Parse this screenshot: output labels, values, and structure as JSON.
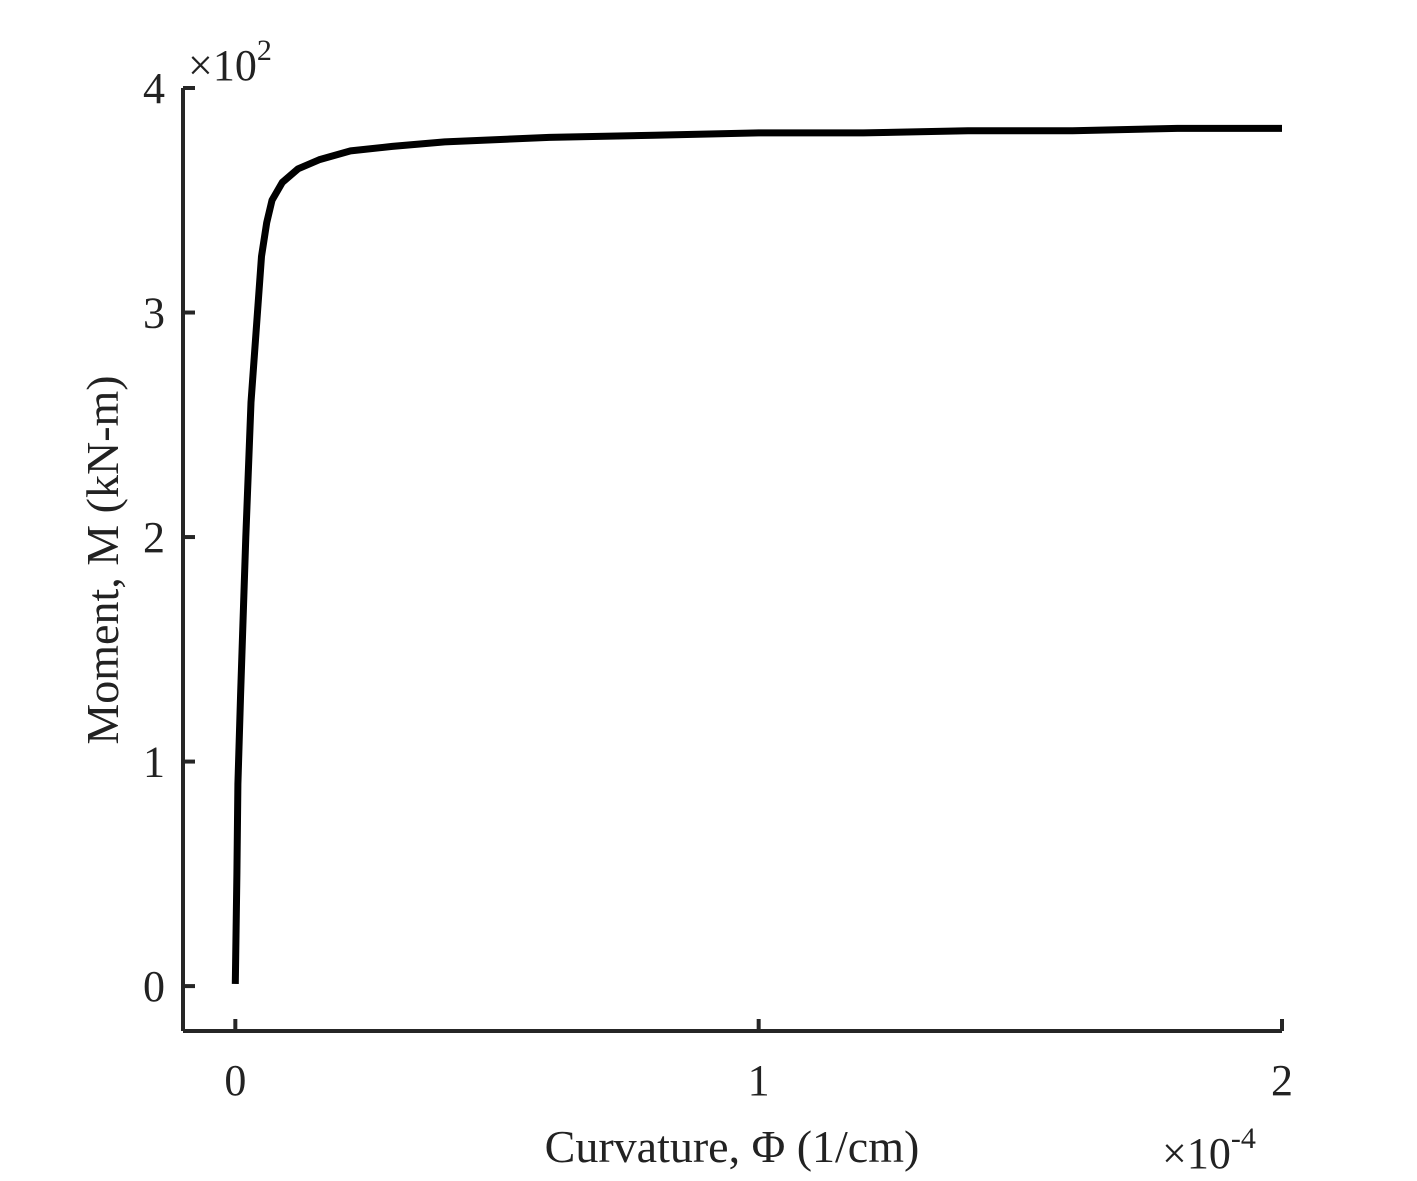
{
  "chart_data": {
    "type": "line",
    "title": "",
    "xlabel": "Curvature, Φ (1/cm)",
    "ylabel": "Moment, M (kN-m)",
    "x_exponent": {
      "prefix": "×10",
      "power": "-4"
    },
    "y_exponent": {
      "prefix": "×10",
      "power": "2"
    },
    "xlim": [
      -0.1,
      2.0
    ],
    "ylim": [
      -0.2,
      4.0
    ],
    "xticks": [
      {
        "value": 0,
        "label": "0"
      },
      {
        "value": 1,
        "label": "1"
      },
      {
        "value": 2,
        "label": "2"
      }
    ],
    "yticks": [
      {
        "value": 0,
        "label": "0"
      },
      {
        "value": 1,
        "label": "1"
      },
      {
        "value": 2,
        "label": "2"
      },
      {
        "value": 3,
        "label": "3"
      },
      {
        "value": 4,
        "label": "4"
      }
    ],
    "grid": false,
    "series": [
      {
        "color": "#000000",
        "x": [
          0,
          0.003,
          0.005,
          0.01,
          0.02,
          0.03,
          0.05,
          0.06,
          0.07,
          0.09,
          0.12,
          0.16,
          0.22,
          0.3,
          0.4,
          0.6,
          0.8,
          1.0,
          1.2,
          1.4,
          1.6,
          1.8,
          2.0
        ],
        "y": [
          0.01,
          0.5,
          0.9,
          1.3,
          2.0,
          2.6,
          3.25,
          3.4,
          3.5,
          3.58,
          3.64,
          3.68,
          3.72,
          3.74,
          3.76,
          3.78,
          3.79,
          3.8,
          3.8,
          3.81,
          3.81,
          3.82,
          3.82
        ]
      }
    ]
  }
}
